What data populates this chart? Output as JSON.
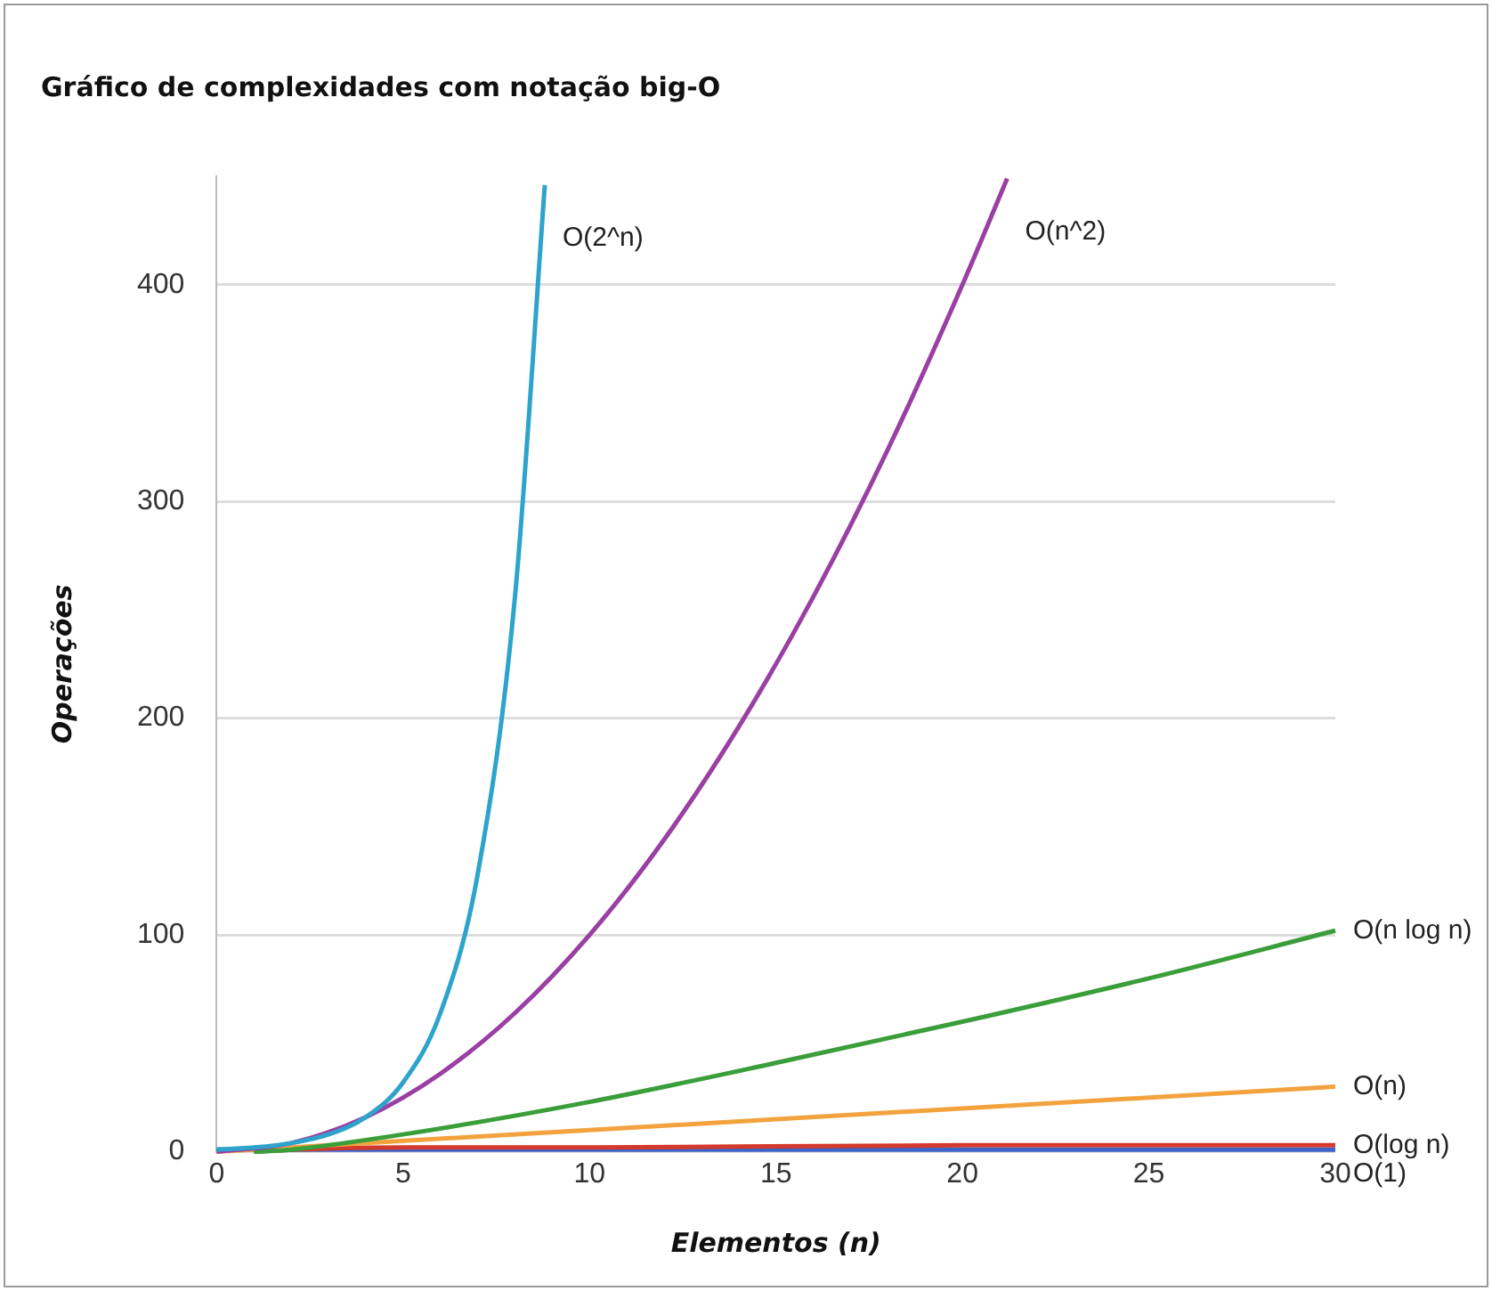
{
  "chart_data": {
    "type": "line",
    "title": "Gráfico de complexidades com notação big-O",
    "xlabel": "Elementos (n)",
    "ylabel": "Operações",
    "xlim": [
      0,
      30
    ],
    "xticks": [
      0,
      5,
      10,
      15,
      20,
      25,
      30
    ],
    "ylim": [
      0,
      450
    ],
    "yticks": [
      0,
      100,
      200,
      300,
      400
    ],
    "grid": "y",
    "legend": false,
    "marker": "none",
    "series": [
      {
        "name": "O(2^n)",
        "color": "#2ea3cc",
        "x": [
          0,
          1,
          2,
          3,
          4,
          5,
          6,
          7,
          8,
          8.8
        ],
        "values": [
          1,
          2,
          4,
          8,
          16,
          32,
          64,
          128,
          256,
          446
        ]
      },
      {
        "name": "O(n^2)",
        "color": "#9a3fa3",
        "x": [
          0,
          2,
          4,
          6,
          8,
          10,
          12,
          14,
          16,
          18,
          20,
          21.2
        ],
        "values": [
          0,
          4,
          16,
          36,
          64,
          100,
          144,
          196,
          256,
          324,
          400,
          449
        ]
      },
      {
        "name": "O(n log n)",
        "color": "#3a9e3a",
        "x": [
          1,
          2,
          5,
          10,
          15,
          20,
          25,
          30
        ],
        "values": [
          0,
          1,
          8,
          23,
          41,
          60,
          80,
          102
        ]
      },
      {
        "name": "O(n)",
        "color": "#f3a33e",
        "x": [
          0,
          30
        ],
        "values": [
          0,
          30
        ]
      },
      {
        "name": "O(log n)",
        "color": "#d43a2c",
        "x": [
          1,
          2,
          5,
          10,
          20,
          30
        ],
        "values": [
          0,
          1,
          2,
          2,
          3,
          3
        ]
      },
      {
        "name": "O(1)",
        "color": "#3b63c8",
        "x": [
          0,
          30
        ],
        "values": [
          1,
          1
        ]
      }
    ]
  }
}
